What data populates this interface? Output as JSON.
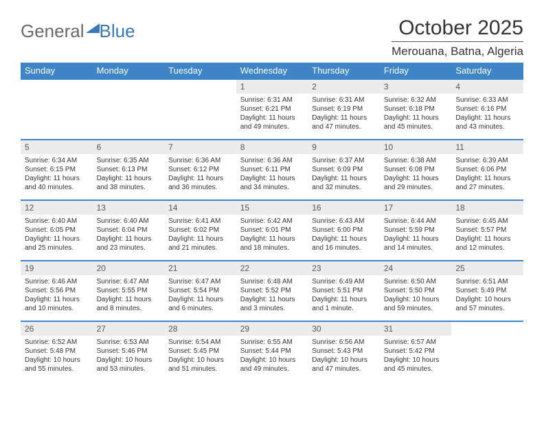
{
  "brand": {
    "part1": "General",
    "part2": "Blue"
  },
  "title": "October 2025",
  "location": "Merouana, Batna, Algeria",
  "colors": {
    "header_bg": "#3d85c6",
    "header_text": "#ffffff",
    "daynum_bg": "#ececec",
    "border": "#3d85c6",
    "body_text": "#333333",
    "logo_gray": "#6a6a6a",
    "logo_blue": "#3a78b6"
  },
  "weekdays": [
    "Sunday",
    "Monday",
    "Tuesday",
    "Wednesday",
    "Thursday",
    "Friday",
    "Saturday"
  ],
  "weeks": [
    [
      {
        "n": "",
        "sunrise": "",
        "sunset": "",
        "daylight": ""
      },
      {
        "n": "",
        "sunrise": "",
        "sunset": "",
        "daylight": ""
      },
      {
        "n": "",
        "sunrise": "",
        "sunset": "",
        "daylight": ""
      },
      {
        "n": "1",
        "sunrise": "Sunrise: 6:31 AM",
        "sunset": "Sunset: 6:21 PM",
        "daylight": "Daylight: 11 hours and 49 minutes."
      },
      {
        "n": "2",
        "sunrise": "Sunrise: 6:31 AM",
        "sunset": "Sunset: 6:19 PM",
        "daylight": "Daylight: 11 hours and 47 minutes."
      },
      {
        "n": "3",
        "sunrise": "Sunrise: 6:32 AM",
        "sunset": "Sunset: 6:18 PM",
        "daylight": "Daylight: 11 hours and 45 minutes."
      },
      {
        "n": "4",
        "sunrise": "Sunrise: 6:33 AM",
        "sunset": "Sunset: 6:16 PM",
        "daylight": "Daylight: 11 hours and 43 minutes."
      }
    ],
    [
      {
        "n": "5",
        "sunrise": "Sunrise: 6:34 AM",
        "sunset": "Sunset: 6:15 PM",
        "daylight": "Daylight: 11 hours and 40 minutes."
      },
      {
        "n": "6",
        "sunrise": "Sunrise: 6:35 AM",
        "sunset": "Sunset: 6:13 PM",
        "daylight": "Daylight: 11 hours and 38 minutes."
      },
      {
        "n": "7",
        "sunrise": "Sunrise: 6:36 AM",
        "sunset": "Sunset: 6:12 PM",
        "daylight": "Daylight: 11 hours and 36 minutes."
      },
      {
        "n": "8",
        "sunrise": "Sunrise: 6:36 AM",
        "sunset": "Sunset: 6:11 PM",
        "daylight": "Daylight: 11 hours and 34 minutes."
      },
      {
        "n": "9",
        "sunrise": "Sunrise: 6:37 AM",
        "sunset": "Sunset: 6:09 PM",
        "daylight": "Daylight: 11 hours and 32 minutes."
      },
      {
        "n": "10",
        "sunrise": "Sunrise: 6:38 AM",
        "sunset": "Sunset: 6:08 PM",
        "daylight": "Daylight: 11 hours and 29 minutes."
      },
      {
        "n": "11",
        "sunrise": "Sunrise: 6:39 AM",
        "sunset": "Sunset: 6:06 PM",
        "daylight": "Daylight: 11 hours and 27 minutes."
      }
    ],
    [
      {
        "n": "12",
        "sunrise": "Sunrise: 6:40 AM",
        "sunset": "Sunset: 6:05 PM",
        "daylight": "Daylight: 11 hours and 25 minutes."
      },
      {
        "n": "13",
        "sunrise": "Sunrise: 6:40 AM",
        "sunset": "Sunset: 6:04 PM",
        "daylight": "Daylight: 11 hours and 23 minutes."
      },
      {
        "n": "14",
        "sunrise": "Sunrise: 6:41 AM",
        "sunset": "Sunset: 6:02 PM",
        "daylight": "Daylight: 11 hours and 21 minutes."
      },
      {
        "n": "15",
        "sunrise": "Sunrise: 6:42 AM",
        "sunset": "Sunset: 6:01 PM",
        "daylight": "Daylight: 11 hours and 18 minutes."
      },
      {
        "n": "16",
        "sunrise": "Sunrise: 6:43 AM",
        "sunset": "Sunset: 6:00 PM",
        "daylight": "Daylight: 11 hours and 16 minutes."
      },
      {
        "n": "17",
        "sunrise": "Sunrise: 6:44 AM",
        "sunset": "Sunset: 5:59 PM",
        "daylight": "Daylight: 11 hours and 14 minutes."
      },
      {
        "n": "18",
        "sunrise": "Sunrise: 6:45 AM",
        "sunset": "Sunset: 5:57 PM",
        "daylight": "Daylight: 11 hours and 12 minutes."
      }
    ],
    [
      {
        "n": "19",
        "sunrise": "Sunrise: 6:46 AM",
        "sunset": "Sunset: 5:56 PM",
        "daylight": "Daylight: 11 hours and 10 minutes."
      },
      {
        "n": "20",
        "sunrise": "Sunrise: 6:47 AM",
        "sunset": "Sunset: 5:55 PM",
        "daylight": "Daylight: 11 hours and 8 minutes."
      },
      {
        "n": "21",
        "sunrise": "Sunrise: 6:47 AM",
        "sunset": "Sunset: 5:54 PM",
        "daylight": "Daylight: 11 hours and 6 minutes."
      },
      {
        "n": "22",
        "sunrise": "Sunrise: 6:48 AM",
        "sunset": "Sunset: 5:52 PM",
        "daylight": "Daylight: 11 hours and 3 minutes."
      },
      {
        "n": "23",
        "sunrise": "Sunrise: 6:49 AM",
        "sunset": "Sunset: 5:51 PM",
        "daylight": "Daylight: 11 hours and 1 minute."
      },
      {
        "n": "24",
        "sunrise": "Sunrise: 6:50 AM",
        "sunset": "Sunset: 5:50 PM",
        "daylight": "Daylight: 10 hours and 59 minutes."
      },
      {
        "n": "25",
        "sunrise": "Sunrise: 6:51 AM",
        "sunset": "Sunset: 5:49 PM",
        "daylight": "Daylight: 10 hours and 57 minutes."
      }
    ],
    [
      {
        "n": "26",
        "sunrise": "Sunrise: 6:52 AM",
        "sunset": "Sunset: 5:48 PM",
        "daylight": "Daylight: 10 hours and 55 minutes."
      },
      {
        "n": "27",
        "sunrise": "Sunrise: 6:53 AM",
        "sunset": "Sunset: 5:46 PM",
        "daylight": "Daylight: 10 hours and 53 minutes."
      },
      {
        "n": "28",
        "sunrise": "Sunrise: 6:54 AM",
        "sunset": "Sunset: 5:45 PM",
        "daylight": "Daylight: 10 hours and 51 minutes."
      },
      {
        "n": "29",
        "sunrise": "Sunrise: 6:55 AM",
        "sunset": "Sunset: 5:44 PM",
        "daylight": "Daylight: 10 hours and 49 minutes."
      },
      {
        "n": "30",
        "sunrise": "Sunrise: 6:56 AM",
        "sunset": "Sunset: 5:43 PM",
        "daylight": "Daylight: 10 hours and 47 minutes."
      },
      {
        "n": "31",
        "sunrise": "Sunrise: 6:57 AM",
        "sunset": "Sunset: 5:42 PM",
        "daylight": "Daylight: 10 hours and 45 minutes."
      },
      {
        "n": "",
        "sunrise": "",
        "sunset": "",
        "daylight": ""
      }
    ]
  ]
}
